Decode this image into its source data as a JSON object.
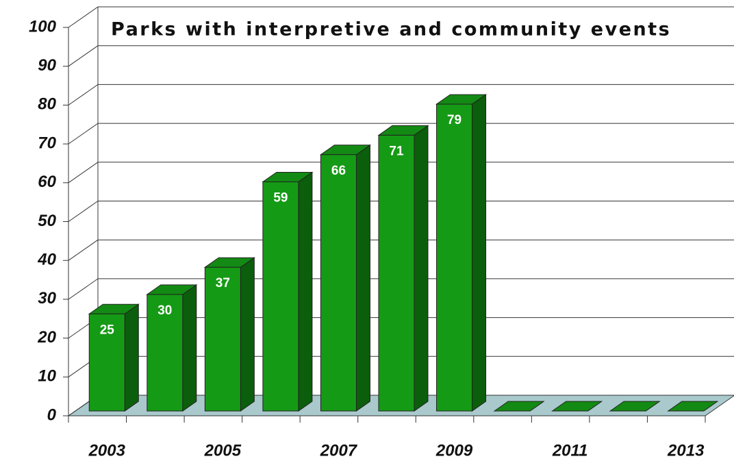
{
  "chart_data": {
    "type": "bar",
    "title": "Parks with interpretive and community events",
    "categories": [
      "2003",
      null,
      "2005",
      null,
      "2007",
      null,
      "2009",
      null,
      "2011",
      null,
      "2013"
    ],
    "values": [
      25,
      30,
      37,
      59,
      66,
      71,
      79,
      0,
      0,
      0,
      0
    ],
    "color": "#159a15",
    "ylim": [
      0,
      100
    ],
    "yticks": [
      0,
      10,
      20,
      30,
      40,
      50,
      60,
      70,
      80,
      90,
      100
    ],
    "grid": true
  }
}
